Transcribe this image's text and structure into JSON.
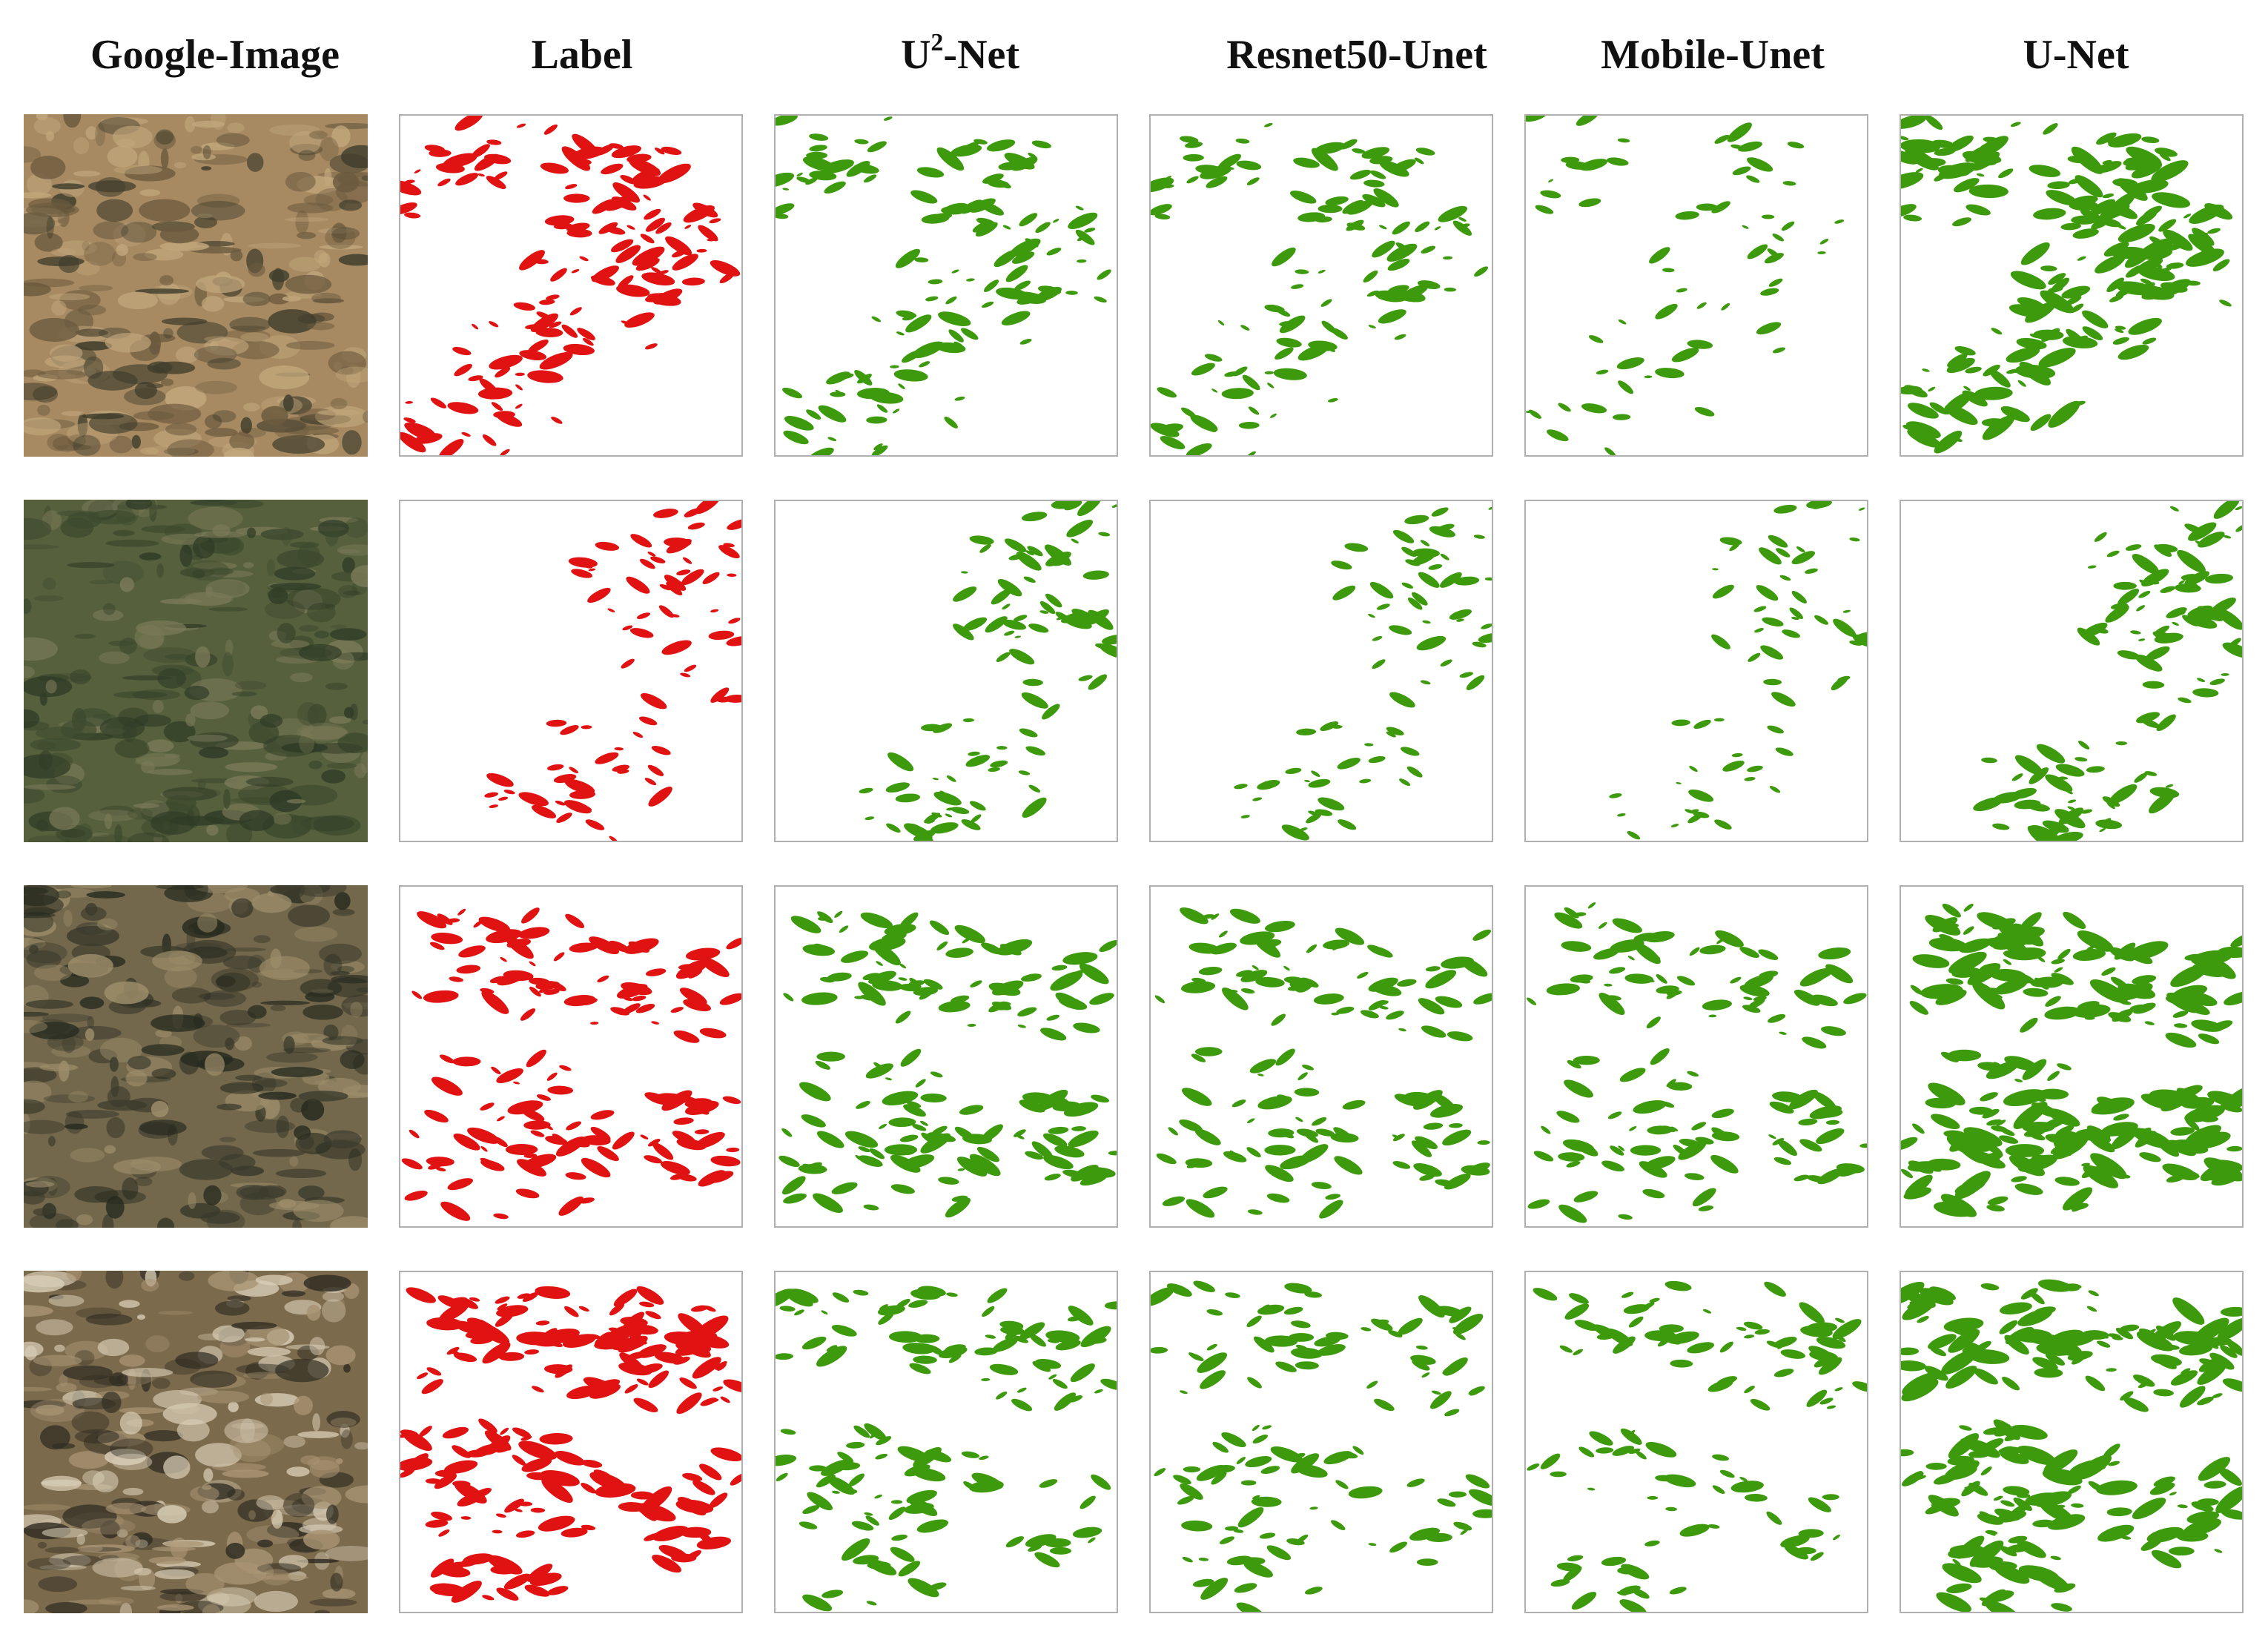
{
  "columns": [
    {
      "id": "google",
      "label": "Google-Image",
      "kind": "photo"
    },
    {
      "id": "label",
      "label": "Label",
      "kind": "mask",
      "color": "#e01212"
    },
    {
      "id": "u2net",
      "label_main": "U",
      "label_sup": "2",
      "label_rest": "-Net",
      "kind": "mask",
      "color": "#3c9a0c"
    },
    {
      "id": "resnet50",
      "label": "Resnet50-Unet",
      "kind": "mask",
      "color": "#3c9a0c"
    },
    {
      "id": "mobile",
      "label": "Mobile-Unet",
      "kind": "mask",
      "color": "#3c9a0c"
    },
    {
      "id": "unet",
      "label": "U-Net",
      "kind": "mask",
      "color": "#3c9a0c"
    }
  ],
  "colors": {
    "label_mask": "#e01212",
    "prediction_mask": "#3c9a0c",
    "panel_border": "#b0b0b0"
  },
  "rows": [
    {
      "id": "row-1",
      "photo_tones": [
        "#a88a62",
        "#6b5a3e",
        "#3f3d2c",
        "#c2a77c"
      ]
    },
    {
      "id": "row-2",
      "photo_tones": [
        "#56603d",
        "#3e4a2e",
        "#7b7a58",
        "#2f3b26"
      ]
    },
    {
      "id": "row-3",
      "photo_tones": [
        "#74684c",
        "#3a3a2c",
        "#9c8d6a",
        "#262a1f"
      ]
    },
    {
      "id": "row-4",
      "photo_tones": [
        "#7c6a4c",
        "#2f2c22",
        "#a89474",
        "#d8cdb6"
      ]
    }
  ]
}
